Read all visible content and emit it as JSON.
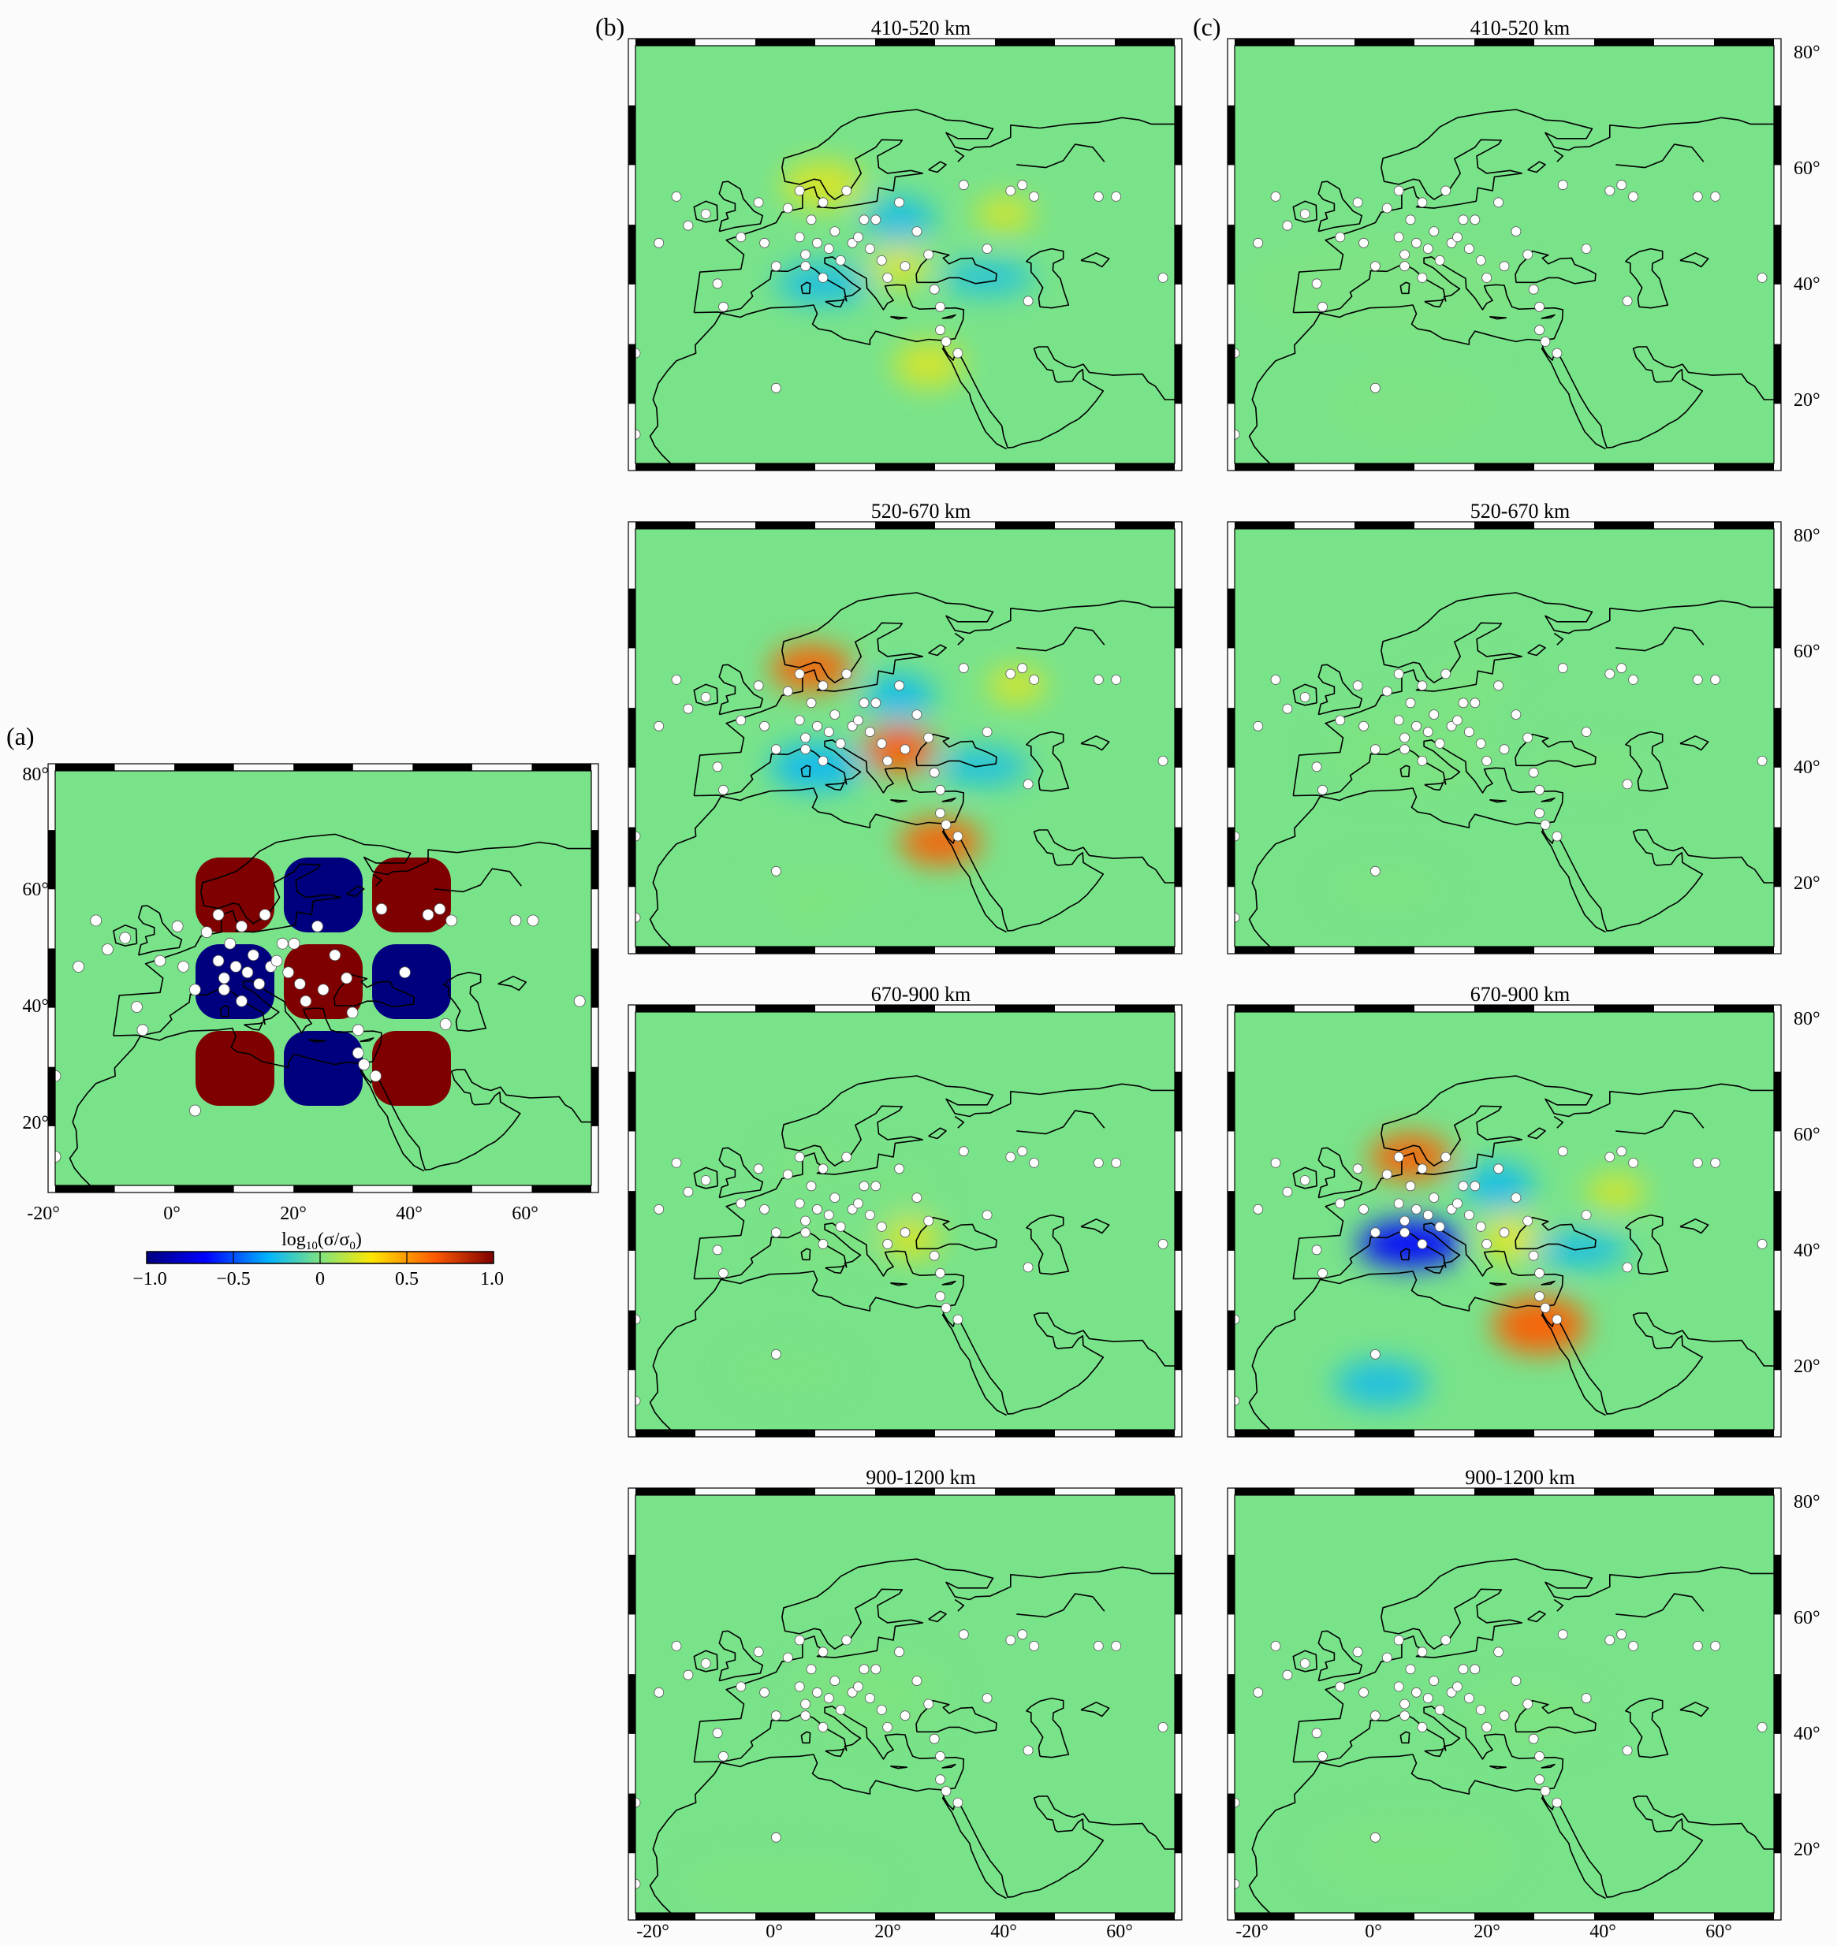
{
  "panel_a": {
    "label": "(a)",
    "lon_ticks": [
      "-20°",
      "0°",
      "20°",
      "40°",
      "60°"
    ],
    "lat_ticks": [
      "20°",
      "40°",
      "60°",
      "80°"
    ],
    "colorbar": {
      "label": "log10(σ/σ0)",
      "label_main": "log",
      "label_sub": "10",
      "label_body": "(σ/σ",
      "label_sub2": "0",
      "label_end": ")",
      "ticks": [
        "−1.0",
        "−0.5",
        "0",
        "0.5",
        "1.0"
      ]
    }
  },
  "panel_b": {
    "label": "(b)"
  },
  "panel_c": {
    "label": "(c)"
  },
  "depth_titles": [
    "410-520 km",
    "520-670 km",
    "670-900 km",
    "900-1200 km"
  ],
  "lat_ticks_right": [
    "20°",
    "40°",
    "60°",
    "80°"
  ],
  "lon_ticks_bottom": [
    "-20°",
    "0°",
    "20°",
    "40°",
    "60°"
  ],
  "colors": {
    "background": "#79e38a",
    "colormap": [
      "#00007f",
      "#0000ff",
      "#00b4ff",
      "#7fe37f",
      "#ffe600",
      "#ff5a00",
      "#7f0000"
    ],
    "station": "#ffffff",
    "coast": "#000000"
  },
  "stations": [
    [
      -20,
      15
    ],
    [
      -20,
      29
    ],
    [
      -16,
      48
    ],
    [
      -13,
      56
    ],
    [
      -11,
      51
    ],
    [
      -8,
      53
    ],
    [
      -6,
      41
    ],
    [
      -5,
      37
    ],
    [
      -2,
      49
    ],
    [
      1,
      55
    ],
    [
      2,
      48
    ],
    [
      4,
      44
    ],
    [
      4,
      23
    ],
    [
      6,
      54
    ],
    [
      8,
      57
    ],
    [
      8,
      49
    ],
    [
      9,
      46
    ],
    [
      9,
      44
    ],
    [
      10,
      52
    ],
    [
      11,
      48
    ],
    [
      12,
      55
    ],
    [
      12,
      42
    ],
    [
      13,
      47
    ],
    [
      14,
      50
    ],
    [
      15,
      45
    ],
    [
      16,
      57
    ],
    [
      17,
      48
    ],
    [
      18,
      49
    ],
    [
      19,
      52
    ],
    [
      20,
      47
    ],
    [
      21,
      52
    ],
    [
      22,
      45
    ],
    [
      23,
      42
    ],
    [
      25,
      55
    ],
    [
      26,
      44
    ],
    [
      28,
      50
    ],
    [
      30,
      46
    ],
    [
      31,
      40
    ],
    [
      32,
      37
    ],
    [
      32,
      33
    ],
    [
      33,
      31
    ],
    [
      35,
      29
    ],
    [
      36,
      58
    ],
    [
      40,
      47
    ],
    [
      44,
      57
    ],
    [
      46,
      58
    ],
    [
      47,
      38
    ],
    [
      48,
      56
    ],
    [
      59,
      56
    ],
    [
      62,
      56
    ],
    [
      70,
      42
    ]
  ],
  "maps": [
    {
      "panel": "b",
      "depth": "410-520 km",
      "anomalies": [
        [
          12,
          58,
          7,
          4,
          0.25
        ],
        [
          12,
          41,
          8,
          3.5,
          -0.3
        ],
        [
          25,
          52,
          6,
          4,
          -0.3
        ],
        [
          25,
          44,
          5,
          3.5,
          0.25
        ],
        [
          40,
          42,
          8,
          3,
          -0.2
        ],
        [
          43,
          53,
          5,
          3,
          0.2
        ],
        [
          30,
          27,
          6,
          4,
          0.2
        ]
      ]
    },
    {
      "panel": "c",
      "depth": "410-520 km",
      "anomalies": [
        [
          5,
          40,
          25,
          10,
          -0.05
        ],
        [
          10,
          20,
          15,
          8,
          0.03
        ]
      ]
    },
    {
      "panel": "b",
      "depth": "520-670 km",
      "anomalies": [
        [
          10,
          58,
          7,
          4,
          0.6
        ],
        [
          11,
          41,
          8,
          4,
          -0.5
        ],
        [
          25,
          53,
          6,
          4,
          -0.4
        ],
        [
          25,
          44,
          6,
          4,
          0.7
        ],
        [
          39,
          41,
          8,
          3,
          -0.35
        ],
        [
          45,
          55,
          5,
          3,
          0.25
        ],
        [
          32,
          28,
          7,
          4,
          0.6
        ],
        [
          12,
          20,
          12,
          4,
          0.1
        ],
        [
          10,
          15,
          6,
          3,
          -0.1
        ]
      ]
    },
    {
      "panel": "c",
      "depth": "520-670 km",
      "anomalies": [
        [
          10,
          44,
          15,
          8,
          -0.15
        ],
        [
          40,
          41,
          10,
          4,
          -0.12
        ],
        [
          6,
          20,
          10,
          4,
          -0.1
        ],
        [
          20,
          55,
          8,
          5,
          -0.05
        ]
      ]
    },
    {
      "panel": "b",
      "depth": "670-900 km",
      "anomalies": [
        [
          10,
          56,
          7,
          4,
          0.15
        ],
        [
          12,
          42,
          8,
          4,
          -0.15
        ],
        [
          25,
          52,
          6,
          4,
          -0.1
        ],
        [
          27,
          43,
          5,
          3.5,
          0.25
        ],
        [
          6,
          20,
          10,
          4,
          -0.08
        ]
      ]
    },
    {
      "panel": "c",
      "depth": "670-900 km",
      "anomalies": [
        [
          10,
          57,
          7,
          4,
          0.6
        ],
        [
          10,
          42,
          9,
          4,
          -0.7
        ],
        [
          25,
          52,
          6,
          4,
          -0.4
        ],
        [
          27,
          43,
          5,
          4,
          0.35
        ],
        [
          39,
          41,
          8,
          3,
          -0.35
        ],
        [
          45,
          51,
          5,
          3,
          0.2
        ],
        [
          32,
          28,
          8,
          5,
          0.65
        ],
        [
          5,
          18,
          8,
          4,
          -0.3
        ]
      ]
    },
    {
      "panel": "b",
      "depth": "900-1200 km",
      "anomalies": [
        [
          20,
          48,
          14,
          8,
          -0.1
        ],
        [
          5,
          15,
          18,
          5,
          0.06
        ]
      ]
    },
    {
      "panel": "c",
      "depth": "900-1200 km",
      "anomalies": [
        [
          30,
          44,
          12,
          6,
          0.1
        ],
        [
          10,
          20,
          18,
          8,
          0.04
        ]
      ]
    }
  ]
}
